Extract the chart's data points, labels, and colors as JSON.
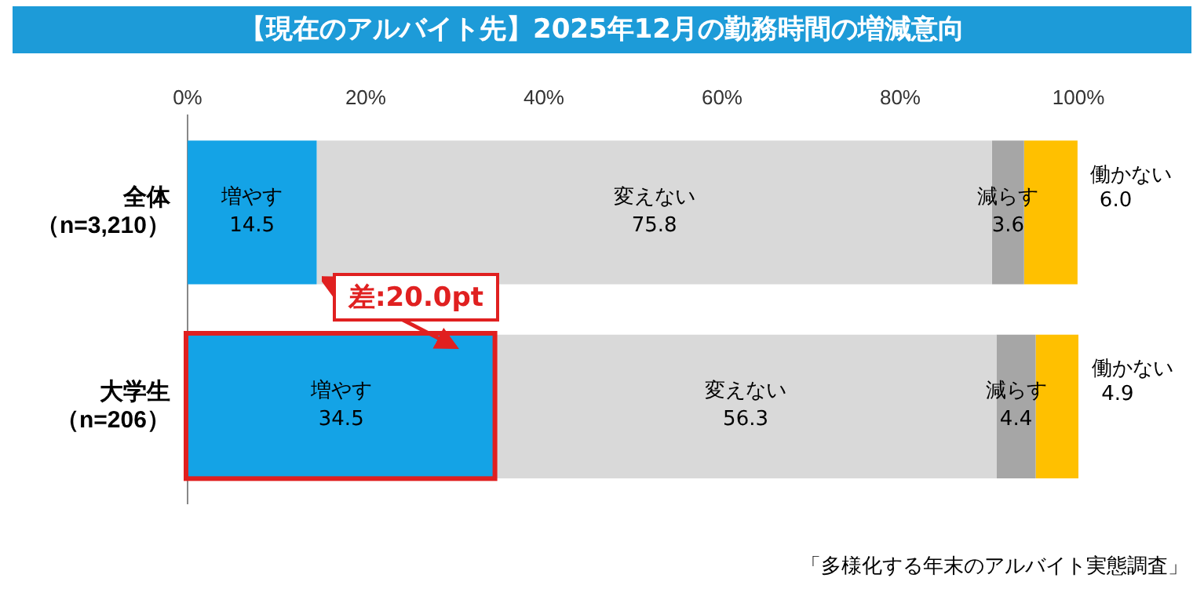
{
  "chart_data": {
    "type": "bar",
    "orientation": "horizontal",
    "stacked": true,
    "title": "【現在のアルバイト先】2025年12月の勤務時間の増減意向",
    "categories": [
      "全体（n=3,210）",
      "大学生（n=206）"
    ],
    "series": [
      {
        "name": "増やす",
        "color": "#14a3e6",
        "values": [
          14.5,
          34.5
        ],
        "value_labels": [
          "14.5",
          "34.5"
        ]
      },
      {
        "name": "変えない",
        "color": "#d9d9d9",
        "values": [
          75.8,
          56.3
        ],
        "value_labels": [
          "75.8",
          "56.3"
        ]
      },
      {
        "name": "減らす",
        "color": "#a6a6a6",
        "values": [
          3.6,
          4.4
        ],
        "value_labels": [
          "3.6",
          "4.4"
        ]
      },
      {
        "name": "働かない",
        "color": "#ffc000",
        "values": [
          6.0,
          4.9
        ],
        "value_labels": [
          "6.0",
          "4.9"
        ]
      }
    ],
    "xlim": [
      0,
      100
    ],
    "xticks": [
      {
        "value": 0,
        "label": "0%"
      },
      {
        "value": 20,
        "label": "20%"
      },
      {
        "value": 40,
        "label": "40%"
      },
      {
        "value": 60,
        "label": "60%"
      },
      {
        "value": 80,
        "label": "80%"
      },
      {
        "value": 100,
        "label": "100%"
      }
    ],
    "grid": false,
    "legend": false,
    "annotations": [
      "差:20.0pt",
      "「多様化する年末のアルバイト実態調査」"
    ]
  }
}
